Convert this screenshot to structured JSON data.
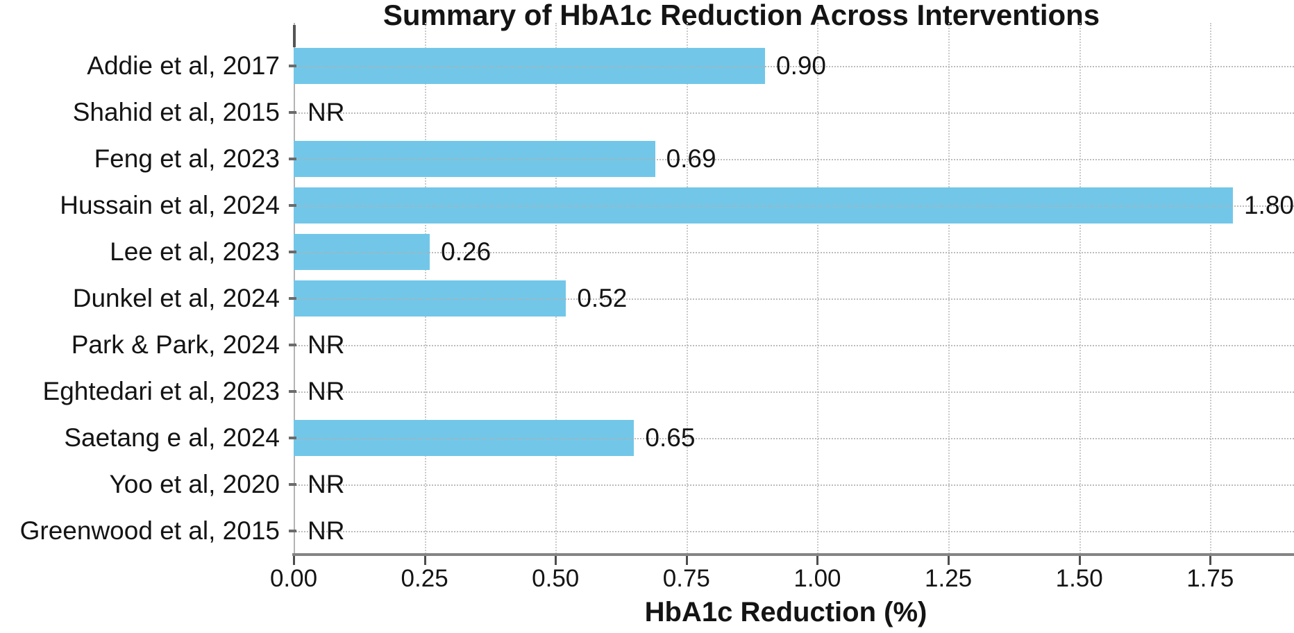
{
  "figure": {
    "title": "Summary of HbA1c Reduction Across Interventions",
    "xlabel": "HbA1c Reduction (%)"
  },
  "chart_data": {
    "type": "bar",
    "orientation": "horizontal",
    "title": "Summary of HbA1c Reduction Across Interventions",
    "xlabel": "HbA1c Reduction (%)",
    "ylabel": "",
    "categories": [
      "Addie et al, 2017",
      "Shahid et al, 2015",
      "Feng et al, 2023",
      "Hussain et al, 2024",
      "Lee et al, 2023",
      "Dunkel et al, 2024",
      "Park & Park, 2024",
      "Eghtedari et al, 2023",
      "Saetang e al, 2024",
      "Yoo et al, 2020",
      "Greenwood et al, 2015"
    ],
    "values": [
      0.9,
      null,
      0.69,
      1.8,
      0.26,
      0.52,
      null,
      null,
      0.65,
      null,
      null
    ],
    "value_labels": [
      "0.90",
      "NR",
      "0.69",
      "1.80",
      "0.26",
      "0.52",
      "NR",
      "NR",
      "0.65",
      "NR",
      "NR"
    ],
    "not_reported_text": "NR",
    "xtick_labels": [
      "0.00",
      "0.25",
      "0.50",
      "0.75",
      "1.00",
      "1.25",
      "1.50",
      "1.75"
    ],
    "xtick_values": [
      0,
      0.25,
      0.5,
      0.75,
      1.0,
      1.25,
      1.5,
      1.75
    ],
    "xlim": [
      0,
      1.91
    ],
    "grid": true,
    "grid_style": "dotted",
    "legend": null,
    "bar_color": "#72c7e9",
    "text_color": "#141414",
    "axis_line_color": "#848484"
  }
}
